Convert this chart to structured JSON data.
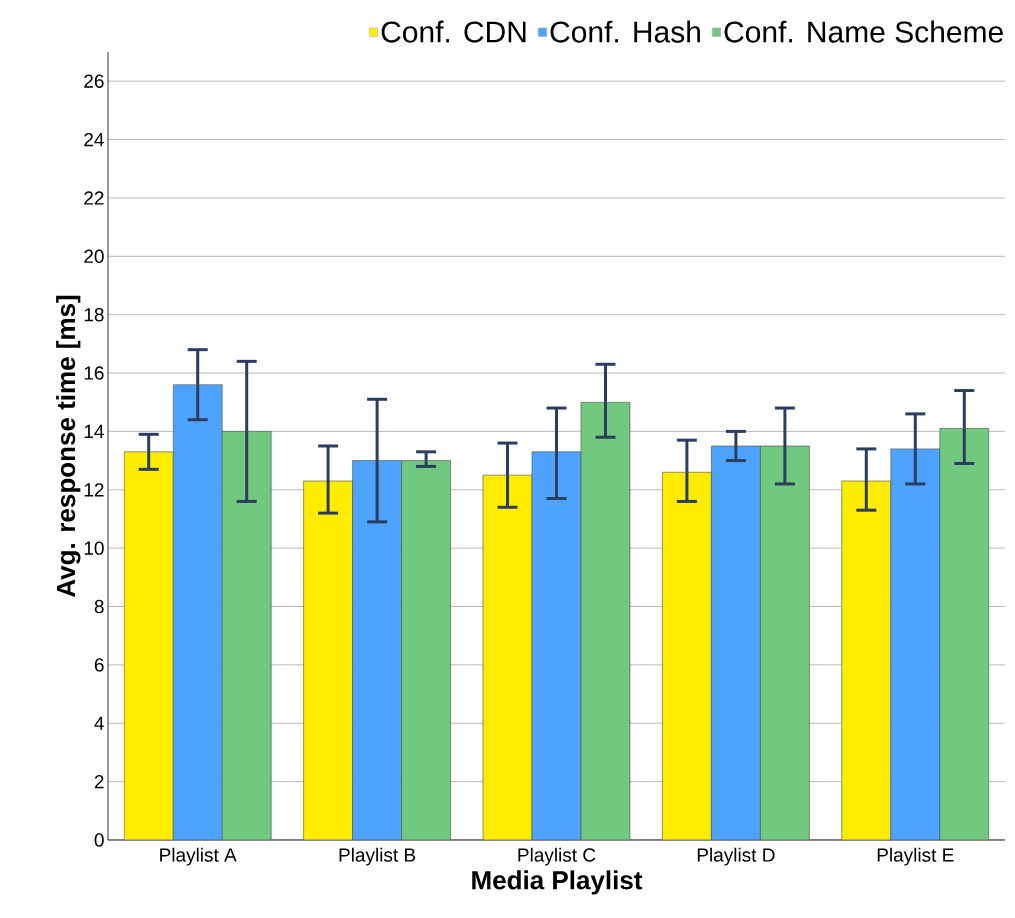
{
  "chart_data": {
    "type": "bar",
    "xlabel": "Media Playlist",
    "ylabel": "Avg. response time [ms]",
    "categories": [
      "Playlist A",
      "Playlist B",
      "Playlist C",
      "Playlist D",
      "Playlist E"
    ],
    "series": [
      {
        "name": "Conf. CDN",
        "color": "#ffec00",
        "values": [
          13.3,
          12.3,
          12.5,
          12.6,
          12.3
        ],
        "errors": [
          [
            12.7,
            13.9
          ],
          [
            11.2,
            13.5
          ],
          [
            11.4,
            13.6
          ],
          [
            11.6,
            13.7
          ],
          [
            11.3,
            13.4
          ]
        ]
      },
      {
        "name": "Conf. Hash",
        "color": "#4da3ff",
        "values": [
          15.6,
          13.0,
          13.3,
          13.5,
          13.4
        ],
        "errors": [
          [
            14.4,
            16.8
          ],
          [
            10.9,
            15.1
          ],
          [
            11.7,
            14.8
          ],
          [
            13.0,
            14.0
          ],
          [
            12.2,
            14.6
          ]
        ]
      },
      {
        "name": "Conf. Name Scheme",
        "color": "#70c97f",
        "values": [
          14.0,
          13.0,
          15.0,
          13.5,
          14.1
        ],
        "errors": [
          [
            11.6,
            16.4
          ],
          [
            12.8,
            13.3
          ],
          [
            13.8,
            16.3
          ],
          [
            12.2,
            14.8
          ],
          [
            12.9,
            15.4
          ]
        ]
      }
    ],
    "ylim": [
      0,
      27
    ],
    "yticks": [
      0,
      2,
      4,
      6,
      8,
      10,
      12,
      14,
      16,
      18,
      20,
      22,
      24,
      26
    ],
    "grid": "y",
    "legend": "top right"
  }
}
